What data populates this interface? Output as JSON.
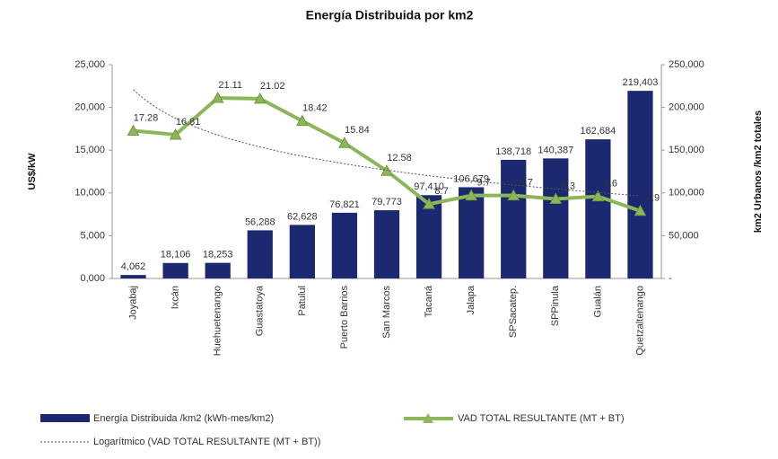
{
  "chart_data": {
    "type": "bar_line",
    "title": "Energía Distribuida por km2",
    "ylabel": "US$/kW",
    "y2label": "km2 Urbanos /km2 totales",
    "categories": [
      "Joyabaj",
      "Ixcán",
      "Huehuetenango",
      "Guastatoya",
      "Patulul",
      "Puerto Barrios",
      "San Marcos",
      "Tacaná",
      "Jalapa",
      "SPSacatep.",
      "SPPinula",
      "Gualán",
      "Quetzaltenango"
    ],
    "ylim": [
      0,
      25
    ],
    "yticks": [
      {
        "value": 0,
        "label": "0,000"
      },
      {
        "value": 5,
        "label": "5,000"
      },
      {
        "value": 10,
        "label": "10,000"
      },
      {
        "value": 15,
        "label": "15,000"
      },
      {
        "value": 20,
        "label": "20,000"
      },
      {
        "value": 25,
        "label": "25,000"
      }
    ],
    "y2lim": [
      0,
      250000
    ],
    "y2ticks": [
      {
        "value": 0,
        "label": "-"
      },
      {
        "value": 50000,
        "label": "50,000"
      },
      {
        "value": 100000,
        "label": "100,000"
      },
      {
        "value": 150000,
        "label": "150,000"
      },
      {
        "value": 200000,
        "label": "200,000"
      },
      {
        "value": 250000,
        "label": "250,000"
      }
    ],
    "series": [
      {
        "name": "Energía Distribuida /km2 (kWh-mes/km2)",
        "type": "bar",
        "axis": "y2",
        "color": "#1c2870",
        "values": [
          4062,
          18106,
          18253,
          56288,
          62628,
          76821,
          79773,
          97410,
          106679,
          138718,
          140387,
          162684,
          219403
        ],
        "value_labels": [
          "4,062",
          "18,106",
          "18,253",
          "56,288",
          "62,628",
          "76,821",
          "79,773",
          "97,410",
          "106,679",
          "138,718",
          "140,387",
          "162,684",
          "219,403"
        ]
      },
      {
        "name": "VAD TOTAL RESULTANTE (MT + BT)",
        "type": "line",
        "axis": "y",
        "color": "#8db65a",
        "values": [
          17.28,
          16.81,
          21.11,
          21.02,
          18.42,
          15.84,
          12.58,
          8.7,
          9.7,
          9.7,
          9.3,
          9.6,
          7.9
        ]
      }
    ],
    "trendline": {
      "name": "Logarítmico (VAD TOTAL RESULTANTE (MT + BT))",
      "kind": "log",
      "series": 1,
      "color": "#555"
    }
  }
}
